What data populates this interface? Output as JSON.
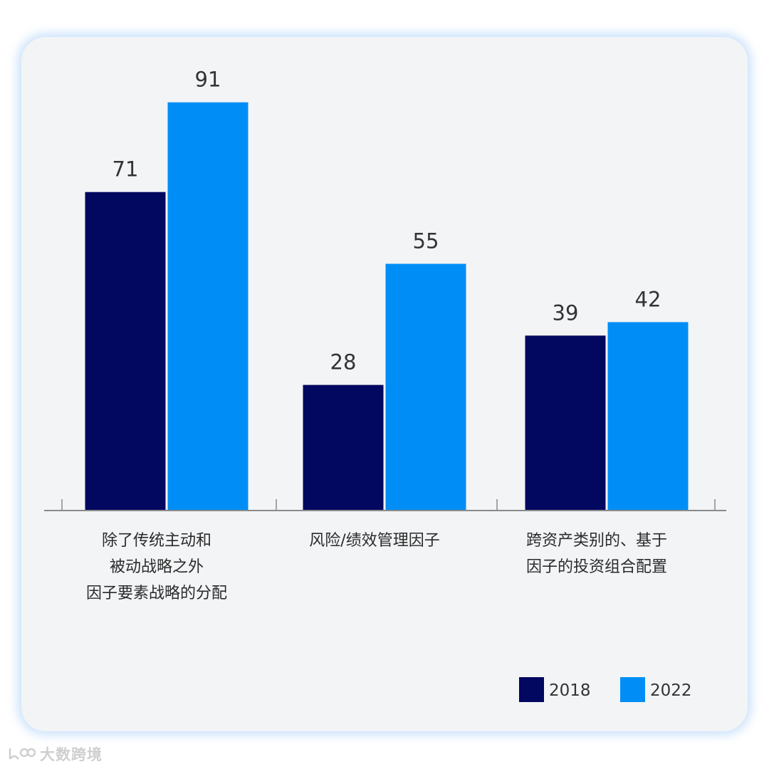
{
  "chart_data": {
    "type": "bar",
    "title": "",
    "xlabel": "",
    "ylabel": "",
    "ylim": [
      0,
      100
    ],
    "grid": false,
    "legend_position": "bottom-right",
    "categories": [
      [
        "除了传统主动和",
        "被动战略之外",
        "因子要素战略的分配"
      ],
      [
        "风险/绩效管理因子"
      ],
      [
        "跨资产类别的、基于",
        "因子的投资组合配置"
      ]
    ],
    "series": [
      {
        "name": "2018",
        "color": "#020760",
        "values": [
          71,
          28,
          39
        ]
      },
      {
        "name": "2022",
        "color": "#008ef6",
        "values": [
          91,
          55,
          42
        ]
      }
    ]
  },
  "watermark": {
    "text": "大数跨境",
    "icon": "brand-logo-icon"
  }
}
